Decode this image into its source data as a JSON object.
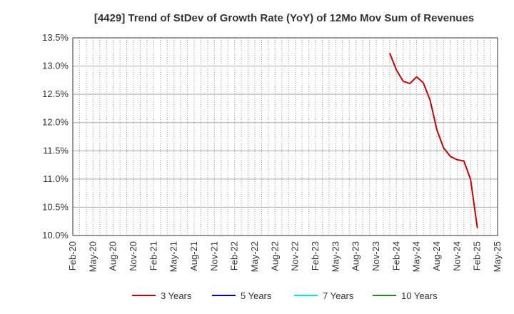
{
  "chart_data": {
    "type": "line",
    "title": "[4429]  Trend of StDev of Growth Rate (YoY) of 12Mo Mov Sum of Revenues",
    "xlabel": "",
    "ylabel": "",
    "ylim": [
      10.0,
      13.5
    ],
    "yticks": [
      "10.0%",
      "10.5%",
      "11.0%",
      "11.5%",
      "12.0%",
      "12.5%",
      "13.0%",
      "13.5%"
    ],
    "ytick_values": [
      10.0,
      10.5,
      11.0,
      11.5,
      12.0,
      12.5,
      13.0,
      13.5
    ],
    "xticks": [
      "Feb-20",
      "May-20",
      "Aug-20",
      "Nov-20",
      "Feb-21",
      "May-21",
      "Aug-21",
      "Nov-21",
      "Feb-22",
      "May-22",
      "Aug-22",
      "Nov-22",
      "Feb-23",
      "May-23",
      "Aug-23",
      "Nov-23",
      "Feb-24",
      "May-24",
      "Aug-24",
      "Nov-24",
      "Feb-25",
      "May-25"
    ],
    "grid": true,
    "legend_position": "bottom",
    "series": [
      {
        "name": "3 Years",
        "color": "#cc0000",
        "start_month_index": 47,
        "values": [
          13.23,
          12.93,
          12.73,
          12.69,
          12.81,
          12.7,
          12.39,
          11.87,
          11.55,
          11.4,
          11.34,
          11.32,
          10.99,
          10.13
        ]
      },
      {
        "name": "5 Years",
        "color": "#0000cc",
        "start_month_index": 0,
        "values": []
      },
      {
        "name": "7 Years",
        "color": "#00e5ee",
        "start_month_index": 0,
        "values": []
      },
      {
        "name": "10 Years",
        "color": "#228b22",
        "start_month_index": 0,
        "values": []
      }
    ]
  }
}
